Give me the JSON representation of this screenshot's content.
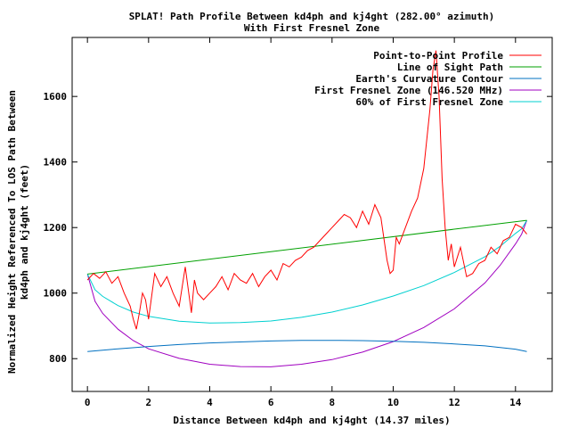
{
  "chart_data": {
    "type": "line",
    "title": "SPLAT! Path Profile Between kd4ph and kj4ght (282.00° azimuth)",
    "subtitle": "With First Fresnel Zone",
    "xlabel": "Distance Between kd4ph and kj4ght (14.37 miles)",
    "ylabel_line1": "Normalized Height Referenced To LOS Path Between",
    "ylabel_line2": "kd4ph and kj4ght (feet)",
    "xlim": [
      -0.5,
      15.2
    ],
    "ylim": [
      700,
      1780
    ],
    "xticks": [
      "0",
      "2",
      "4",
      "6",
      "8",
      "10",
      "12",
      "14"
    ],
    "yticks": [
      "800",
      "1000",
      "1200",
      "1400",
      "1600"
    ],
    "legend_position": "top-right",
    "grid": false,
    "series": [
      {
        "name": "Point-to-Point Profile",
        "color": "#ff0000",
        "x": [
          0,
          0.2,
          0.4,
          0.6,
          0.8,
          1.0,
          1.2,
          1.4,
          1.5,
          1.6,
          1.7,
          1.8,
          1.9,
          2.0,
          2.2,
          2.4,
          2.6,
          2.8,
          3.0,
          3.2,
          3.4,
          3.5,
          3.6,
          3.8,
          4.0,
          4.2,
          4.4,
          4.6,
          4.8,
          5.0,
          5.2,
          5.4,
          5.6,
          5.8,
          6.0,
          6.2,
          6.4,
          6.6,
          6.8,
          7.0,
          7.2,
          7.4,
          7.6,
          7.8,
          8.0,
          8.2,
          8.4,
          8.6,
          8.8,
          9.0,
          9.2,
          9.4,
          9.6,
          9.8,
          9.9,
          10.0,
          10.1,
          10.2,
          10.4,
          10.6,
          10.8,
          11.0,
          11.2,
          11.3,
          11.4,
          11.5,
          11.6,
          11.7,
          11.8,
          11.9,
          12.0,
          12.2,
          12.4,
          12.6,
          12.8,
          13.0,
          13.2,
          13.4,
          13.6,
          13.8,
          14.0,
          14.2,
          14.37
        ],
        "values": [
          1040,
          1060,
          1045,
          1065,
          1030,
          1050,
          1000,
          960,
          920,
          890,
          940,
          1000,
          980,
          920,
          1060,
          1020,
          1050,
          1000,
          960,
          1080,
          940,
          1040,
          1000,
          980,
          1000,
          1020,
          1050,
          1010,
          1060,
          1040,
          1030,
          1060,
          1020,
          1050,
          1070,
          1040,
          1090,
          1080,
          1100,
          1110,
          1130,
          1140,
          1160,
          1180,
          1200,
          1220,
          1240,
          1230,
          1200,
          1250,
          1210,
          1270,
          1230,
          1100,
          1060,
          1070,
          1170,
          1150,
          1200,
          1250,
          1290,
          1380,
          1560,
          1680,
          1740,
          1600,
          1350,
          1200,
          1100,
          1150,
          1080,
          1140,
          1050,
          1060,
          1090,
          1100,
          1140,
          1120,
          1160,
          1170,
          1210,
          1200,
          1180
        ]
      },
      {
        "name": "Line of Sight Path",
        "color": "#00a000",
        "x": [
          0,
          14.37
        ],
        "values": [
          1058,
          1222
        ]
      },
      {
        "name": "Earth's Curvature Contour",
        "color": "#0070c0",
        "x": [
          0,
          1,
          2,
          3,
          4,
          5,
          6,
          7,
          8,
          9,
          10,
          11,
          12,
          13,
          14,
          14.37
        ],
        "values": [
          822,
          830,
          837,
          843,
          848,
          851,
          854,
          856,
          856,
          855,
          853,
          850,
          845,
          839,
          829,
          822
        ]
      },
      {
        "name": "First Fresnel Zone (146.520 MHz)",
        "color": "#a000c0",
        "x": [
          0,
          0.25,
          0.5,
          1,
          1.5,
          2,
          3,
          4,
          5,
          6,
          7,
          8,
          9,
          10,
          11,
          12,
          13,
          13.5,
          14,
          14.2,
          14.37
        ],
        "values": [
          1058,
          975,
          938,
          890,
          855,
          830,
          801,
          783,
          776,
          775,
          783,
          797,
          820,
          852,
          895,
          952,
          1031,
          1085,
          1150,
          1180,
          1222
        ]
      },
      {
        "name": "60% of First Fresnel Zone",
        "color": "#00d0d0",
        "x": [
          0,
          0.25,
          0.5,
          1,
          1.5,
          2,
          3,
          4,
          5,
          6,
          7,
          8,
          9,
          10,
          11,
          12,
          13,
          13.5,
          14,
          14.2,
          14.37
        ],
        "values": [
          1058,
          1010,
          990,
          962,
          942,
          929,
          914,
          909,
          910,
          915,
          926,
          942,
          964,
          991,
          1023,
          1063,
          1111,
          1143,
          1182,
          1196,
          1222
        ]
      }
    ]
  }
}
